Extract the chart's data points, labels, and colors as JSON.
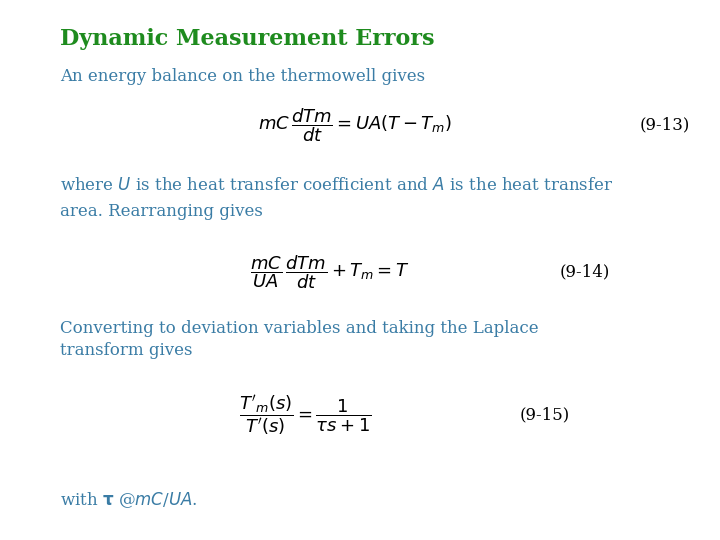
{
  "title": "Dynamic Measurement Errors",
  "title_color": "#1E8B1E",
  "title_fontsize": 16,
  "body_color": "#3A7CA5",
  "body_fontsize": 12,
  "eq_color": "#000000",
  "label_color": "#000000",
  "background_color": "#FFFFFF",
  "text_line1": "An energy balance on the thermowell gives",
  "eq1_label": "(9-13)",
  "eq2_label": "(9-14)",
  "eq3_label": "(9-15)",
  "text_line3": "area. Rearranging gives",
  "text_line4a": "Converting to deviation variables and taking the Laplace",
  "text_line4b": "transform gives"
}
